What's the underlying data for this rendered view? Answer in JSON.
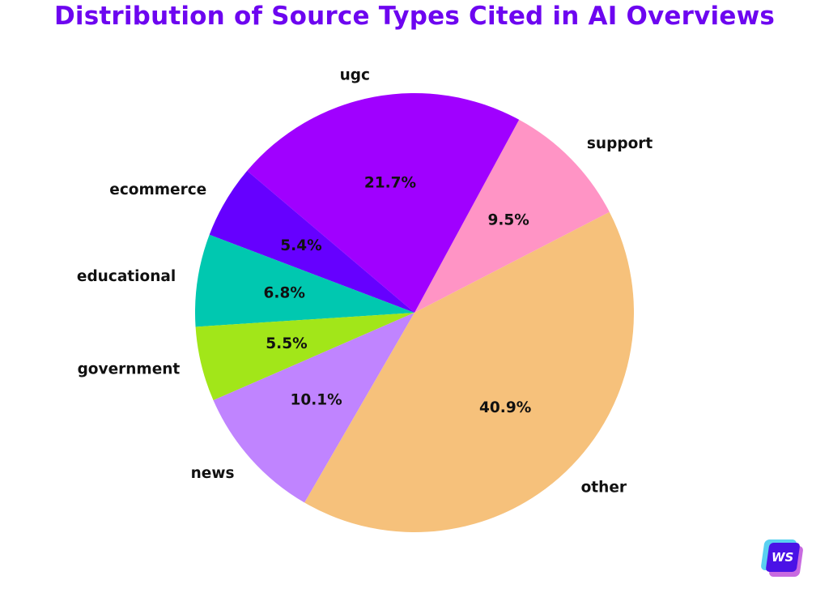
{
  "title": "Distribution of Source Types Cited in AI Overviews",
  "watermark": {
    "text": "WS",
    "icon": "ws-logo-icon"
  },
  "chart_data": {
    "type": "pie",
    "title": "Distribution of Source Types Cited in AI Overviews",
    "start_angle_deg": 27.3,
    "direction": "counterclockwise",
    "center": [
      512,
      386
    ],
    "radius": 271,
    "categories": [
      "support",
      "ugc",
      "ecommerce",
      "educational",
      "government",
      "news",
      "other"
    ],
    "values": [
      9.5,
      21.7,
      5.4,
      6.8,
      5.5,
      10.1,
      40.9
    ],
    "labels_pct": [
      "9.5%",
      "21.7%",
      "5.4%",
      "6.8%",
      "5.5%",
      "10.1%",
      "40.9%"
    ],
    "colors": [
      "#ff94c5",
      "#a000ff",
      "#6600ff",
      "#00c8b0",
      "#a2e619",
      "#c084ff",
      "#f6c17b"
    ],
    "legend": "none (labels on slices)"
  }
}
